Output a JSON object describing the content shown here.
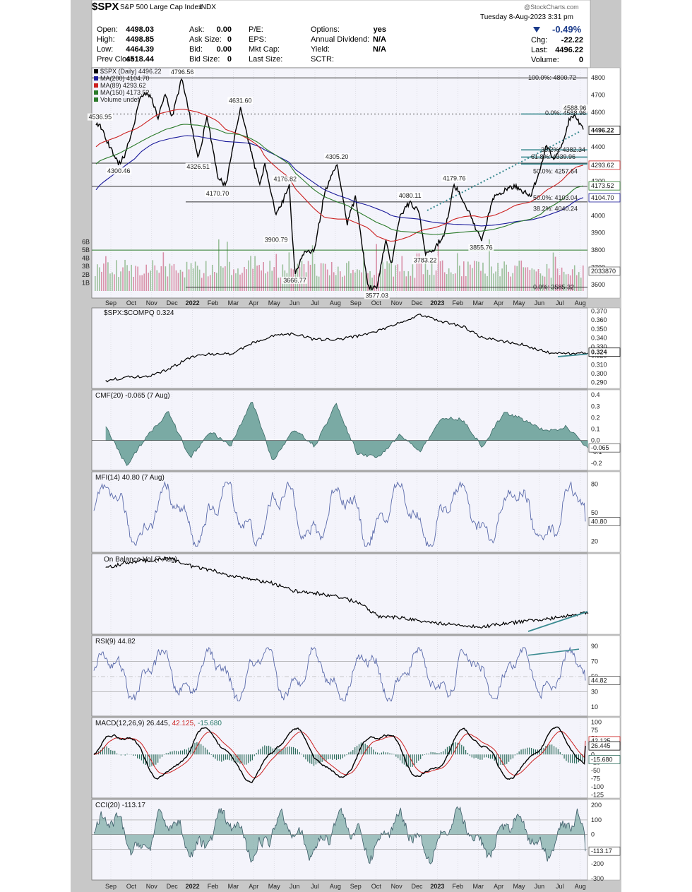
{
  "header": {
    "symbol": "$SPX",
    "name": "S&P 500 Large Cap Index",
    "exchange": "INDX",
    "date_line": "Tuesday  8-Aug-2023  3:31 pm",
    "watermark": "@StockCharts.com",
    "change_pct": "-0.49%",
    "chg_label": "Chg:",
    "chg_value": "-22.22",
    "last_label": "Last:",
    "last_value": "4496.22",
    "volume_label": "Volume:",
    "volume_value": "0",
    "quote_rows": [
      {
        "l1": "Open:",
        "v1": "4498.03",
        "l2": "Ask:",
        "v2": "0.00",
        "l3": "P/E:",
        "v3": "",
        "l4": "Options:",
        "v4": "yes"
      },
      {
        "l1": "High:",
        "v1": "4498.85",
        "l2": "Ask Size:",
        "v2": "0",
        "l3": "EPS:",
        "v3": "",
        "l4": "Annual Dividend:",
        "v4": "N/A"
      },
      {
        "l1": "Low:",
        "v1": "4464.39",
        "l2": "Bid:",
        "v2": "0.00",
        "l3": "Mkt Cap:",
        "v3": "",
        "l4": "Yield:",
        "v4": "N/A"
      },
      {
        "l1": "Prev Close:",
        "v1": "4518.44",
        "l2": "Bid Size:",
        "v2": "0",
        "l3": "Last Size:",
        "v3": "",
        "l4": "SCTR:",
        "v4": ""
      }
    ]
  },
  "x_axis": {
    "labels": [
      "Sep",
      "Oct",
      "Nov",
      "Dec",
      "2022",
      "Feb",
      "Mar",
      "Apr",
      "May",
      "Jun",
      "Jul",
      "Aug",
      "Sep",
      "Oct",
      "Nov",
      "Dec",
      "2023",
      "Feb",
      "Mar",
      "Apr",
      "May",
      "Jun",
      "Jul",
      "Aug"
    ],
    "bold": [
      "2022",
      "2023"
    ]
  },
  "colors": {
    "price": "#000000",
    "ma200": "#1a1a9a",
    "ma89": "#cc2020",
    "ma150": "#2a7a2a",
    "volume_up": "#9cc09c",
    "volume_down": "#d890a8",
    "indicator": "#5a6aaa",
    "fill_teal": "#7aaaa4",
    "trend_teal": "#3a8a90",
    "panel_bg": "#f4f4fb",
    "grid": "#c0c0c8"
  },
  "panels": {
    "price": {
      "legend": [
        {
          "text": "$SPX (Daily) 4496.22",
          "color": "#000000"
        },
        {
          "text": "MA(200) 4104.70",
          "color": "#1a1a9a"
        },
        {
          "text": "MA(89) 4293.62",
          "color": "#cc2020"
        },
        {
          "text": "MA(150) 4173.52",
          "color": "#2a7a2a"
        },
        {
          "text": "Volume undef",
          "color": "#2a7a2a"
        }
      ],
      "y_ticks": [
        "4800",
        "4700",
        "4600",
        "4500",
        "4400",
        "4300",
        "4200",
        "4100",
        "4000",
        "3900",
        "3800",
        "3700",
        "3600"
      ],
      "vol_ticks": [
        "6B",
        "5B",
        "4B",
        "3B",
        "2B",
        "1B"
      ],
      "tags": [
        {
          "text": "4496.22",
          "kind": "last"
        },
        {
          "text": "4293.62",
          "kind": "ma89"
        },
        {
          "text": "4173.52",
          "kind": "ma150"
        },
        {
          "text": "4104.70",
          "kind": "ma200"
        },
        {
          "text": "2033870",
          "kind": "volume"
        }
      ],
      "annotations": [
        "4796.56",
        "4536.95",
        "4300.46",
        "4326.51",
        "4631.60",
        "4170.70",
        "4176.82",
        "3900.79",
        "3666.77",
        "4305.20",
        "3577.03",
        "4080.11",
        "3783.22",
        "4179.76",
        "3855.76",
        "4588.96"
      ],
      "fib_labels": [
        "100.0%: 4800.72",
        "0.0%: 4588.96",
        "38.2%: 4382.34",
        "61.8%: 4339.96",
        "50.0%: 4257.64",
        "50.0%: 4103.04",
        "38.2%: 4040.24",
        "0.0%: 3585.32"
      ]
    },
    "ratio": {
      "label": "$SPX:$COMPQ 0.324",
      "tag": "0.324",
      "y_ticks": [
        "0.370",
        "0.360",
        "0.350",
        "0.340",
        "0.330",
        "0.320",
        "0.310",
        "0.300",
        "0.290"
      ]
    },
    "cmf": {
      "label": "CMF(20) -0.065 (7 Aug)",
      "tag": "-0.065",
      "y_ticks": [
        "0.4",
        "0.3",
        "0.2",
        "0.1",
        "0.0",
        "-0.1",
        "-0.2"
      ]
    },
    "mfi": {
      "label": "MFI(14) 40.80 (7 Aug)",
      "tag": "40.80",
      "y_ticks": [
        "80",
        "50",
        "20"
      ]
    },
    "obv": {
      "label": "On Balance Vol (7 Aug)"
    },
    "rsi": {
      "label": "RSI(9) 44.82",
      "tag": "44.82",
      "y_ticks": [
        "90",
        "70",
        "50",
        "30",
        "10"
      ]
    },
    "macd": {
      "label_main": "MACD(12,26,9) 26.445,",
      "label_signal": "42.125,",
      "label_hist": "-15.680",
      "tags": [
        "42.125",
        "26.445",
        "-15.680"
      ],
      "y_ticks": [
        "100",
        "75",
        "50",
        "25",
        "0",
        "-25",
        "-50",
        "-75",
        "-100",
        "-125"
      ]
    },
    "cci": {
      "label": "CCI(20) -113.17",
      "tag": "-113.17",
      "y_ticks": [
        "200",
        "100",
        "0",
        "-100",
        "-200",
        "-300"
      ]
    }
  },
  "chart_data": [
    {
      "type": "line",
      "title": "$SPX (Daily) 4496.22",
      "x": [
        "2021-09-01",
        "2021-09-07",
        "2021-09-20",
        "2021-10-04",
        "2021-10-13",
        "2021-10-27",
        "2021-11-05",
        "2021-11-19",
        "2021-11-30",
        "2021-12-10",
        "2021-12-20",
        "2022-01-03",
        "2022-01-10",
        "2022-01-27",
        "2022-02-09",
        "2022-02-24",
        "2022-03-08",
        "2022-03-29",
        "2022-04-12",
        "2022-04-26",
        "2022-05-04",
        "2022-05-20",
        "2022-06-08",
        "2022-06-16",
        "2022-06-30",
        "2022-07-14",
        "2022-07-29",
        "2022-08-16",
        "2022-08-31",
        "2022-09-12",
        "2022-09-30",
        "2022-10-13",
        "2022-10-26",
        "2022-11-03",
        "2022-11-15",
        "2022-11-30",
        "2022-12-13",
        "2022-12-22",
        "2023-01-05",
        "2023-01-19",
        "2023-02-02",
        "2023-02-17",
        "2023-03-02",
        "2023-03-13",
        "2023-03-31",
        "2023-04-18",
        "2023-05-01",
        "2023-05-24",
        "2023-06-08",
        "2023-06-16",
        "2023-06-26",
        "2023-07-07",
        "2023-07-19",
        "2023-07-27",
        "2023-08-08"
      ],
      "series": [
        {
          "name": "$SPX",
          "values": [
            4536,
            4520,
            4405,
            4300,
            4350,
            4550,
            4700,
            4700,
            4570,
            4710,
            4570,
            4796,
            4680,
            4326,
            4580,
            4225,
            4170,
            4631,
            4400,
            4175,
            4300,
            4000,
            4170,
            3666,
            3790,
            3790,
            4130,
            4305,
            3955,
            4110,
            3585,
            3577,
            3860,
            3720,
            4000,
            4080,
            4020,
            3783,
            3810,
            3900,
            4180,
            4080,
            3955,
            3855,
            4100,
            4155,
            4170,
            4115,
            4290,
            4410,
            4330,
            4400,
            4560,
            4588,
            4496
          ]
        },
        {
          "name": "MA(200)",
          "values": [
            4150,
            4180,
            4220,
            4260,
            4290,
            4330,
            4370,
            4410,
            4430,
            4440,
            4450,
            4460,
            4465,
            4460,
            4450,
            4440,
            4430,
            4425,
            4420,
            4400,
            4380,
            4350,
            4310,
            4270,
            4230,
            4190,
            4150,
            4120,
            4100,
            4080,
            4060,
            4040,
            4020,
            4000,
            3990,
            3985,
            3980,
            3970,
            3960,
            3955,
            3950,
            3948,
            3945,
            3940,
            3945,
            3955,
            3965,
            3975,
            3990,
            4000,
            4015,
            4030,
            4060,
            4085,
            4105
          ]
        },
        {
          "name": "MA(89)",
          "values": [
            4400,
            4420,
            4440,
            4460,
            4480,
            4500,
            4520,
            4560,
            4590,
            4600,
            4610,
            4620,
            4615,
            4600,
            4580,
            4550,
            4500,
            4470,
            4440,
            4400,
            4340,
            4280,
            4220,
            4160,
            4100,
            4040,
            3990,
            3980,
            3980,
            3960,
            3930,
            3880,
            3860,
            3850,
            3860,
            3880,
            3910,
            3920,
            3930,
            3950,
            3980,
            3995,
            4000,
            3990,
            4000,
            4030,
            4060,
            4080,
            4120,
            4150,
            4170,
            4200,
            4250,
            4280,
            4293
          ]
        },
        {
          "name": "MA(150)",
          "values": [
            4300,
            4320,
            4340,
            4360,
            4380,
            4410,
            4430,
            4460,
            4480,
            4500,
            4510,
            4530,
            4530,
            4525,
            4515,
            4500,
            4480,
            4470,
            4450,
            4420,
            4390,
            4350,
            4300,
            4250,
            4200,
            4150,
            4110,
            4080,
            4060,
            4030,
            3990,
            3960,
            3940,
            3920,
            3910,
            3905,
            3900,
            3895,
            3890,
            3895,
            3900,
            3905,
            3910,
            3910,
            3920,
            3940,
            3960,
            3980,
            4010,
            4040,
            4060,
            4090,
            4130,
            4160,
            4173
          ]
        }
      ],
      "xlabel": "",
      "ylabel": "",
      "ylim": [
        3530,
        4850
      ],
      "legend": "top-left"
    },
    {
      "type": "bar",
      "title": "Volume undef",
      "series": [
        {
          "name": "Volume",
          "values_billions_range": [
            1.0,
            6.2
          ]
        }
      ],
      "ylim": [
        0,
        6.5
      ]
    },
    {
      "type": "line",
      "title": "$SPX:$COMPQ 0.324",
      "x": [
        "2021-09",
        "2021-10",
        "2021-11",
        "2021-12",
        "2022-01",
        "2022-02",
        "2022-03",
        "2022-04",
        "2022-05",
        "2022-06",
        "2022-07",
        "2022-08",
        "2022-09",
        "2022-10",
        "2022-11",
        "2022-12",
        "2023-01",
        "2023-02",
        "2023-03",
        "2023-04",
        "2023-05",
        "2023-06",
        "2023-07",
        "2023-08"
      ],
      "series": [
        {
          "name": "$SPX:$COMPQ",
          "values": [
            0.292,
            0.296,
            0.297,
            0.305,
            0.318,
            0.322,
            0.322,
            0.334,
            0.342,
            0.345,
            0.338,
            0.338,
            0.342,
            0.348,
            0.357,
            0.366,
            0.358,
            0.353,
            0.34,
            0.336,
            0.332,
            0.324,
            0.322,
            0.324
          ]
        }
      ],
      "ylim": [
        0.285,
        0.372
      ]
    },
    {
      "type": "area",
      "title": "CMF(20) -0.065 (7 Aug)",
      "x": [
        "2021-09",
        "2021-10",
        "2021-11",
        "2021-12",
        "2022-01",
        "2022-02",
        "2022-03",
        "2022-04",
        "2022-05",
        "2022-06",
        "2022-07",
        "2022-08",
        "2022-09",
        "2022-10",
        "2022-11",
        "2022-12",
        "2023-01",
        "2023-02",
        "2023-03",
        "2023-04",
        "2023-05",
        "2023-06",
        "2023-07",
        "2023-08"
      ],
      "series": [
        {
          "name": "CMF(20)",
          "values": [
            0.12,
            -0.22,
            0.05,
            0.25,
            -0.15,
            0.08,
            -0.05,
            0.35,
            -0.18,
            0.1,
            -0.05,
            0.32,
            -0.12,
            -0.15,
            0.05,
            -0.1,
            0.2,
            0.18,
            -0.06,
            0.25,
            0.18,
            0.08,
            0.12,
            -0.065
          ]
        }
      ],
      "ylim": [
        -0.25,
        0.42
      ]
    },
    {
      "type": "line",
      "title": "MFI(14) 40.80 (7 Aug)",
      "series": [
        {
          "name": "MFI(14)",
          "range": [
            15,
            82
          ],
          "last": 40.8
        }
      ],
      "ylim": [
        10,
        90
      ]
    },
    {
      "type": "line",
      "title": "On Balance Vol (7 Aug)",
      "series": [
        {
          "name": "OBV",
          "values_relative": [
            0.85,
            0.92,
            0.95,
            0.98,
            0.88,
            0.82,
            0.75,
            0.7,
            0.65,
            0.55,
            0.52,
            0.48,
            0.4,
            0.22,
            0.2,
            0.15,
            0.12,
            0.1,
            0.08,
            0.12,
            0.15,
            0.18,
            0.22,
            0.26
          ]
        }
      ]
    },
    {
      "type": "line",
      "title": "RSI(9) 44.82",
      "series": [
        {
          "name": "RSI(9)",
          "range": [
            18,
            88
          ],
          "last": 44.82
        }
      ],
      "ylim": [
        0,
        100
      ]
    },
    {
      "type": "line",
      "title": "MACD(12,26,9) 26.445, 42.125, -15.680",
      "series": [
        {
          "name": "MACD",
          "last": 26.445
        },
        {
          "name": "Signal",
          "last": 42.125
        },
        {
          "name": "Histogram",
          "last": -15.68
        }
      ],
      "ylim": [
        -130,
        105
      ]
    },
    {
      "type": "line",
      "title": "CCI(20) -113.17",
      "series": [
        {
          "name": "CCI(20)",
          "range": [
            -270,
            210
          ],
          "last": -113.17
        }
      ],
      "ylim": [
        -300,
        220
      ]
    }
  ]
}
